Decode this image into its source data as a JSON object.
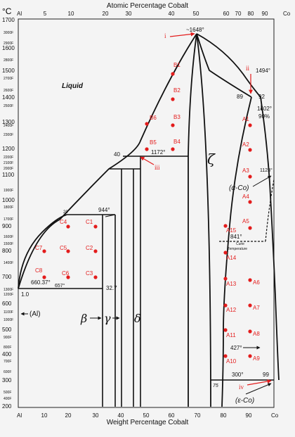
{
  "top_axis": {
    "title": "Atomic Percentage Cobalt",
    "corner_left": "°C",
    "left_end": "Al",
    "right_end": "Co",
    "ticks": [
      "5",
      "10",
      "20",
      "30",
      "40",
      "50",
      "60",
      "70",
      "80",
      "90"
    ]
  },
  "bottom_axis": {
    "title": "Weight Percentage Cobalt",
    "left_end": "Al",
    "right_end": "Co",
    "ticks": [
      "10",
      "20",
      "30",
      "40",
      "50",
      "60",
      "70",
      "80",
      "90"
    ]
  },
  "left_axis": {
    "major": [
      "1700",
      "1600",
      "1500",
      "1400",
      "1300",
      "1200",
      "1100",
      "1000",
      "900",
      "800",
      "700",
      "600",
      "500",
      "400",
      "300",
      "200"
    ],
    "minor_F": [
      "3000F",
      "2900F",
      "2800F",
      "2700F",
      "2600F",
      "2500F",
      "2400F",
      "2300F",
      "2200F",
      "2100F",
      "2000F",
      "1900F",
      "1800F",
      "1700F",
      "1600F",
      "1500F",
      "1400F",
      "1300F",
      "1200F",
      "1100F",
      "1000F",
      "900F",
      "800F",
      "700F",
      "600F",
      "500F",
      "400F"
    ]
  },
  "phases": {
    "liquid": "Liquid",
    "zeta": "ζ",
    "alpha_co": "(α-Co)",
    "epsilon_co": "(ε-Co)",
    "al": "(Al)",
    "beta": "β",
    "gamma": "γ",
    "delta": "δ"
  },
  "annotations": {
    "t1648": "~1648°",
    "t1494": "1494°",
    "t1402": "1402°",
    "c90": "90%",
    "c89": "89",
    "c92": "92",
    "t1172": "1172°",
    "c40": "40",
    "t1123": "1123°",
    "t944": "944°",
    "c20": "20",
    "t841": "841°",
    "curie": "Curie",
    "curie_temp": "Temperature",
    "t660": "660.37°",
    "t657": "657°",
    "c327": "32.7",
    "c10": "1.0",
    "t427": "427°",
    "t300": "300°",
    "c75": "75",
    "c99": "99"
  },
  "markers": {
    "i": "i",
    "ii": "ii",
    "iii": "iii",
    "iv": "iv"
  },
  "points": {
    "B1": "B1",
    "B2": "B2",
    "B3": "B3",
    "B4": "B4",
    "B5": "B5",
    "B6": "B6",
    "A1": "A1",
    "A2": "A2",
    "A3": "A3",
    "A4": "A4",
    "A5": "A5",
    "A6": "A6",
    "A7": "A7",
    "A8": "A8",
    "A9": "A9",
    "A10": "A10",
    "A11": "A11",
    "A12": "A12",
    "A13": "A13",
    "A14": "A14",
    "A15": "A15",
    "C1": "C1",
    "C2": "C2",
    "C3": "C3",
    "C4": "C4",
    "C5": "C5",
    "C6": "C6",
    "C7": "C7",
    "C8": "C8"
  },
  "colors": {
    "curve": "#111111",
    "point": "#e31c1c",
    "background": "#f4f4f4"
  }
}
